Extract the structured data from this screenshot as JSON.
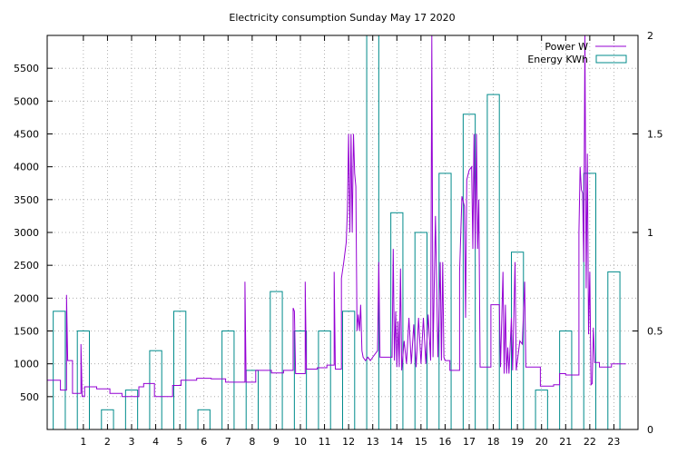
{
  "chart_data": {
    "type": "line",
    "title": "Electricity consumption Sunday May 17 2020",
    "xlim": [
      -0.5,
      24
    ],
    "ylim": [
      0,
      6000
    ],
    "y2lim": [
      0,
      2
    ],
    "grid": true,
    "legend_position": "top-right",
    "x_ticks": [
      "1",
      "2",
      "3",
      "4",
      "5",
      "6",
      "7",
      "8",
      "9",
      "10",
      "11",
      "12",
      "13",
      "14",
      "15",
      "16",
      "17",
      "18",
      "19",
      "20",
      "21",
      "22",
      "23"
    ],
    "y_ticks": [
      "500",
      "1000",
      "1500",
      "2000",
      "2500",
      "3000",
      "3500",
      "4000",
      "4500",
      "5000",
      "5500"
    ],
    "y2_ticks": [
      "0",
      "0.5",
      "1",
      "1.5",
      "2"
    ],
    "series": [
      {
        "name": "Power W",
        "axis": "left",
        "style": "step-line",
        "color": "#9400d3",
        "points": [
          [
            -0.5,
            750
          ],
          [
            0.05,
            750
          ],
          [
            0.05,
            600
          ],
          [
            0.3,
            600
          ],
          [
            0.3,
            2050
          ],
          [
            0.35,
            1050
          ],
          [
            0.55,
            1050
          ],
          [
            0.55,
            550
          ],
          [
            0.9,
            550
          ],
          [
            0.9,
            1300
          ],
          [
            0.95,
            500
          ],
          [
            1.05,
            500
          ],
          [
            1.05,
            650
          ],
          [
            1.55,
            650
          ],
          [
            1.55,
            620
          ],
          [
            2.1,
            620
          ],
          [
            2.1,
            550
          ],
          [
            2.6,
            550
          ],
          [
            2.6,
            500
          ],
          [
            3.3,
            500
          ],
          [
            3.3,
            650
          ],
          [
            3.5,
            650
          ],
          [
            3.5,
            700
          ],
          [
            3.95,
            700
          ],
          [
            3.95,
            500
          ],
          [
            4.7,
            500
          ],
          [
            4.7,
            670
          ],
          [
            5.05,
            670
          ],
          [
            5.05,
            750
          ],
          [
            5.7,
            750
          ],
          [
            5.7,
            780
          ],
          [
            6.3,
            780
          ],
          [
            6.3,
            770
          ],
          [
            6.9,
            770
          ],
          [
            6.9,
            720
          ],
          [
            7.7,
            720
          ],
          [
            7.7,
            2250
          ],
          [
            7.75,
            720
          ],
          [
            8.15,
            720
          ],
          [
            8.15,
            900
          ],
          [
            8.8,
            900
          ],
          [
            8.8,
            860
          ],
          [
            9.3,
            860
          ],
          [
            9.3,
            900
          ],
          [
            9.7,
            900
          ],
          [
            9.7,
            1850
          ],
          [
            9.75,
            1800
          ],
          [
            9.8,
            850
          ],
          [
            10.2,
            850
          ],
          [
            10.2,
            2250
          ],
          [
            10.25,
            920
          ],
          [
            10.7,
            920
          ],
          [
            10.7,
            940
          ],
          [
            11.1,
            940
          ],
          [
            11.1,
            980
          ],
          [
            11.4,
            980
          ],
          [
            11.4,
            2400
          ],
          [
            11.45,
            920
          ],
          [
            11.7,
            920
          ],
          [
            11.7,
            2300
          ],
          [
            11.8,
            2550
          ],
          [
            11.9,
            2850
          ],
          [
            11.95,
            3350
          ],
          [
            12.0,
            4500
          ],
          [
            12.05,
            3000
          ],
          [
            12.1,
            4500
          ],
          [
            12.15,
            3000
          ],
          [
            12.2,
            4500
          ],
          [
            12.25,
            3900
          ],
          [
            12.3,
            3700
          ],
          [
            12.35,
            1500
          ],
          [
            12.4,
            1750
          ],
          [
            12.45,
            1500
          ],
          [
            12.5,
            1900
          ],
          [
            12.55,
            1200
          ],
          [
            12.6,
            1100
          ],
          [
            12.7,
            1050
          ],
          [
            12.8,
            1100
          ],
          [
            12.9,
            1050
          ],
          [
            13.0,
            1100
          ],
          [
            13.2,
            1200
          ],
          [
            13.25,
            2550
          ],
          [
            13.3,
            1100
          ],
          [
            13.8,
            1100
          ],
          [
            13.85,
            2750
          ],
          [
            13.9,
            1050
          ],
          [
            13.95,
            1800
          ],
          [
            14.0,
            950
          ],
          [
            14.05,
            1650
          ],
          [
            14.1,
            950
          ],
          [
            14.15,
            2450
          ],
          [
            14.2,
            900
          ],
          [
            14.3,
            1350
          ],
          [
            14.4,
            1000
          ],
          [
            14.5,
            1700
          ],
          [
            14.6,
            1000
          ],
          [
            14.7,
            1600
          ],
          [
            14.8,
            950
          ],
          [
            14.9,
            1700
          ],
          [
            15.0,
            1000
          ],
          [
            15.1,
            1700
          ],
          [
            15.2,
            1000
          ],
          [
            15.3,
            1750
          ],
          [
            15.4,
            1050
          ],
          [
            15.45,
            6000
          ],
          [
            15.5,
            1100
          ],
          [
            15.6,
            3250
          ],
          [
            15.7,
            1100
          ],
          [
            15.8,
            2550
          ],
          [
            15.85,
            1050
          ],
          [
            15.9,
            2550
          ],
          [
            15.95,
            1100
          ],
          [
            16.0,
            1050
          ],
          [
            16.2,
            1050
          ],
          [
            16.2,
            900
          ],
          [
            16.6,
            900
          ],
          [
            16.6,
            2400
          ],
          [
            16.7,
            3550
          ],
          [
            16.8,
            3400
          ],
          [
            16.85,
            1700
          ],
          [
            16.9,
            3800
          ],
          [
            17.0,
            3950
          ],
          [
            17.1,
            4000
          ],
          [
            17.15,
            2750
          ],
          [
            17.2,
            4500
          ],
          [
            17.25,
            2750
          ],
          [
            17.3,
            4500
          ],
          [
            17.35,
            2750
          ],
          [
            17.4,
            3500
          ],
          [
            17.45,
            950
          ],
          [
            17.9,
            950
          ],
          [
            17.9,
            1900
          ],
          [
            18.25,
            1900
          ],
          [
            18.3,
            950
          ],
          [
            18.4,
            2400
          ],
          [
            18.45,
            850
          ],
          [
            18.5,
            1900
          ],
          [
            18.55,
            850
          ],
          [
            18.6,
            1250
          ],
          [
            18.65,
            850
          ],
          [
            18.75,
            1700
          ],
          [
            18.8,
            900
          ],
          [
            18.9,
            2550
          ],
          [
            18.95,
            900
          ],
          [
            19.1,
            1350
          ],
          [
            19.2,
            1300
          ],
          [
            19.3,
            2250
          ],
          [
            19.35,
            950
          ],
          [
            19.95,
            950
          ],
          [
            19.95,
            660
          ],
          [
            20.5,
            660
          ],
          [
            20.5,
            680
          ],
          [
            20.75,
            680
          ],
          [
            20.75,
            850
          ],
          [
            21.0,
            850
          ],
          [
            21.0,
            830
          ],
          [
            21.55,
            830
          ],
          [
            21.55,
            3000
          ],
          [
            21.6,
            4000
          ],
          [
            21.65,
            3650
          ],
          [
            21.7,
            3600
          ],
          [
            21.75,
            2550
          ],
          [
            21.8,
            6000
          ],
          [
            21.85,
            2150
          ],
          [
            21.9,
            4200
          ],
          [
            21.95,
            1450
          ],
          [
            22.0,
            2400
          ],
          [
            22.05,
            680
          ],
          [
            22.1,
            700
          ],
          [
            22.15,
            1550
          ],
          [
            22.2,
            1020
          ],
          [
            22.4,
            1020
          ],
          [
            22.4,
            950
          ],
          [
            22.9,
            950
          ],
          [
            22.9,
            1000
          ],
          [
            23.5,
            1000
          ]
        ]
      },
      {
        "name": "Energy KWh",
        "axis": "right",
        "style": "impulse-boxes",
        "color": "#008b8b",
        "hours": [
          0,
          1,
          2,
          3,
          4,
          5,
          6,
          7,
          8,
          9,
          10,
          11,
          12,
          13,
          14,
          15,
          16,
          17,
          18,
          19,
          20,
          21,
          22,
          23
        ],
        "values": [
          0.6,
          0.5,
          0.1,
          0.2,
          0.4,
          0.6,
          0.1,
          0.5,
          0.3,
          0.7,
          0.5,
          0.5,
          0.6,
          2.0,
          1.1,
          1.0,
          1.3,
          1.6,
          1.7,
          0.9,
          0.2,
          0.5,
          1.3,
          0.8
        ]
      }
    ]
  }
}
